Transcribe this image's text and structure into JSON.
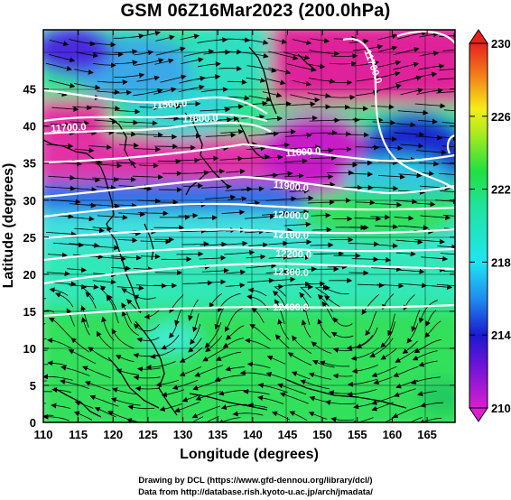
{
  "title": "GSM 06Z16Mar2023 (200.0hPa)",
  "axes": {
    "xlabel": "Longitude (degrees)",
    "ylabel": "Latitude (degrees)",
    "xticks": [
      "110",
      "115",
      "120",
      "125",
      "130",
      "135",
      "140",
      "145",
      "150",
      "155",
      "160",
      "165"
    ],
    "yticks": [
      "0",
      "5",
      "10",
      "15",
      "20",
      "25",
      "30",
      "35",
      "40",
      "45"
    ]
  },
  "colorbar": {
    "labels": [
      "210",
      "214",
      "218",
      "222",
      "226",
      "230"
    ],
    "min": 210,
    "max": 230,
    "colors": [
      "#d81fd0",
      "#1a1acf",
      "#1fe6f0",
      "#20e040",
      "#f4ee18",
      "#e8201e"
    ]
  },
  "contours": [
    {
      "label": "11500.0"
    },
    {
      "label": "11600.0"
    },
    {
      "label": "11700.0"
    },
    {
      "label": "11800.0"
    },
    {
      "label": "11900.0"
    },
    {
      "label": "12000.0"
    },
    {
      "label": "12100.0"
    },
    {
      "label": "12200.0"
    },
    {
      "label": "12300.0"
    },
    {
      "label": "12400.0"
    },
    {
      "label": "11700.0"
    }
  ],
  "credits": {
    "line1": "Drawing by DCL (https://www.gfd-dennou.org/library/dcl/)",
    "line2": "Data from http://database.rish.kyoto-u.ac.jp/arch/jmadata/"
  }
}
